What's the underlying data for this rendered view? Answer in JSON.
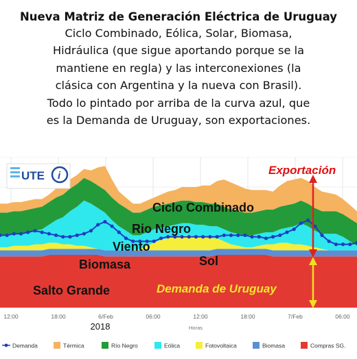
{
  "headline": "Nueva Matriz de Generación Eléctrica de Uruguay",
  "description_lines": [
    "Ciclo Combinado, Eólica, Solar, Biomasa,",
    "Hidráulica (que sigue aportando porque se la",
    "mantiene en regla) y las interconexiones (la",
    "clásica con Argentina y la nueva con Brasil).",
    "Todo lo pintado por arriba de la curva azul, que",
    "es la Demanda de Uruguay, son exportaciones."
  ],
  "logo_text": "UTE",
  "colors": {
    "salto_grande": "#e23a33",
    "biomasa": "#5b8fd4",
    "sol": "#f5ee3a",
    "eolica": "#2ee8ee",
    "rio_negro": "#249b3a",
    "ciclo_combinado": "#f5b25f",
    "demanda": "#1f3cc0",
    "export_arrow": "#e02020",
    "demand_arrow": "#f0e020",
    "export_label": "#e01010",
    "demand_label": "#f2e62a"
  },
  "chart_data": {
    "type": "area",
    "stacked": true,
    "x_ticks": [
      "12:00",
      "18:00",
      "6/Feb",
      "06:00",
      "12:00",
      "18:00",
      "7/Feb",
      "06:00"
    ],
    "x_sublabel_year": "2018",
    "x_axis_label": "Horas",
    "grid": true,
    "y_range": [
      0,
      100
    ],
    "series": [
      {
        "name": "Salto Grande",
        "color": "#e23a33",
        "values": [
          34,
          34,
          34,
          34,
          34,
          34,
          34,
          35,
          35,
          35,
          35,
          35,
          35,
          35,
          35,
          34,
          34,
          34,
          34,
          34,
          34,
          34,
          34,
          34,
          34,
          34,
          34,
          34,
          34,
          34,
          34,
          35,
          35,
          35,
          35,
          35,
          35,
          35,
          35,
          34,
          34,
          34,
          34,
          34,
          34,
          34,
          34,
          34,
          34,
          34,
          34,
          34
        ]
      },
      {
        "name": "Biomasa",
        "color": "#5b8fd4",
        "values": [
          4,
          4,
          4,
          4,
          4,
          4,
          4,
          4,
          4,
          4,
          4,
          4,
          4,
          4,
          4,
          4,
          4,
          4,
          4,
          4,
          4,
          4,
          4,
          4,
          4,
          4,
          4,
          4,
          4,
          4,
          4,
          4,
          4,
          4,
          4,
          4,
          4,
          4,
          4,
          4,
          4,
          4,
          4,
          4,
          4,
          4,
          4,
          4,
          4,
          4,
          4,
          4
        ]
      },
      {
        "name": "Sol",
        "color": "#f5ee3a",
        "values": [
          2,
          2,
          3,
          3,
          3,
          4,
          4,
          4,
          4,
          3,
          3,
          2,
          2,
          1,
          0,
          0,
          0,
          0,
          0,
          0,
          1,
          3,
          5,
          7,
          8,
          9,
          10,
          10,
          9,
          9,
          8,
          7,
          5,
          3,
          2,
          1,
          1,
          2,
          3,
          4,
          5,
          5,
          4,
          4,
          3,
          2,
          1,
          0,
          0,
          0,
          0,
          0
        ]
      },
      {
        "name": "Eólica",
        "color": "#2ee8ee",
        "values": [
          8,
          8,
          8,
          8,
          9,
          9,
          10,
          12,
          15,
          18,
          22,
          26,
          30,
          29,
          27,
          25,
          20,
          16,
          13,
          10,
          9,
          9,
          9,
          8,
          8,
          8,
          8,
          8,
          8,
          8,
          8,
          8,
          8,
          8,
          8,
          8,
          8,
          8,
          8,
          8,
          9,
          10,
          12,
          14,
          13,
          11,
          10,
          11,
          11,
          9,
          6,
          3
        ]
      },
      {
        "name": "Río Negro",
        "color": "#249b3a",
        "values": [
          15,
          15,
          15,
          15,
          15,
          15,
          15,
          15,
          15,
          15,
          15,
          15,
          15,
          15,
          15,
          15,
          15,
          15,
          15,
          15,
          15,
          15,
          15,
          15,
          15,
          15,
          15,
          15,
          15,
          15,
          15,
          15,
          15,
          15,
          15,
          15,
          15,
          15,
          15,
          15,
          15,
          15,
          15,
          15,
          15,
          15,
          15,
          15,
          15,
          15,
          15,
          15
        ]
      },
      {
        "name": "Ciclo Combinado",
        "color": "#f5b25f",
        "values": [
          6,
          6,
          6,
          6,
          6,
          6,
          5,
          5,
          6,
          6,
          6,
          6,
          6,
          7,
          12,
          16,
          12,
          8,
          7,
          6,
          6,
          6,
          6,
          7,
          8,
          8,
          9,
          9,
          10,
          11,
          12,
          15,
          18,
          18,
          17,
          16,
          15,
          14,
          13,
          12,
          14,
          16,
          16,
          15,
          15,
          14,
          13,
          12,
          11,
          10,
          9,
          8
        ]
      }
    ],
    "demand": {
      "name": "Demanda",
      "color": "#1f3cc0",
      "values": [
        48,
        48,
        49,
        49,
        50,
        51,
        50,
        49,
        48,
        47,
        47,
        48,
        49,
        51,
        55,
        57,
        54,
        50,
        46,
        44,
        44,
        44,
        44,
        46,
        47,
        47,
        47,
        47,
        47,
        47,
        47,
        47,
        48,
        48,
        48,
        48,
        47,
        47,
        46,
        47,
        48,
        50,
        52,
        56,
        58,
        54,
        48,
        44,
        42,
        42,
        42,
        43
      ]
    },
    "legend": [
      {
        "label": "Demanda",
        "color": "#1f3cc0",
        "kind": "line-dot"
      },
      {
        "label": "Térmica",
        "color": "#f5b25f",
        "kind": "box"
      },
      {
        "label": "Río Negro",
        "color": "#249b3a",
        "kind": "box"
      },
      {
        "label": "Eólica",
        "color": "#2ee8ee",
        "kind": "box"
      },
      {
        "label": "Fotovoltaica",
        "color": "#f5ee3a",
        "kind": "box"
      },
      {
        "label": "Biomasa",
        "color": "#5b8fd4",
        "kind": "box"
      },
      {
        "label": "Compras SG.",
        "color": "#e23a33",
        "kind": "box"
      }
    ],
    "legend_placement": "bottom",
    "annotations": {
      "exportacion": "Exportación",
      "ciclo_combinado": "Ciclo Combinado",
      "rio_negro": "Rio Negro",
      "viento": "Viento",
      "biomasa": "Biomasa",
      "sol": "Sol",
      "salto_grande": "Salto Grande",
      "demanda_uruguay": "Demanda de Uruguay"
    }
  }
}
